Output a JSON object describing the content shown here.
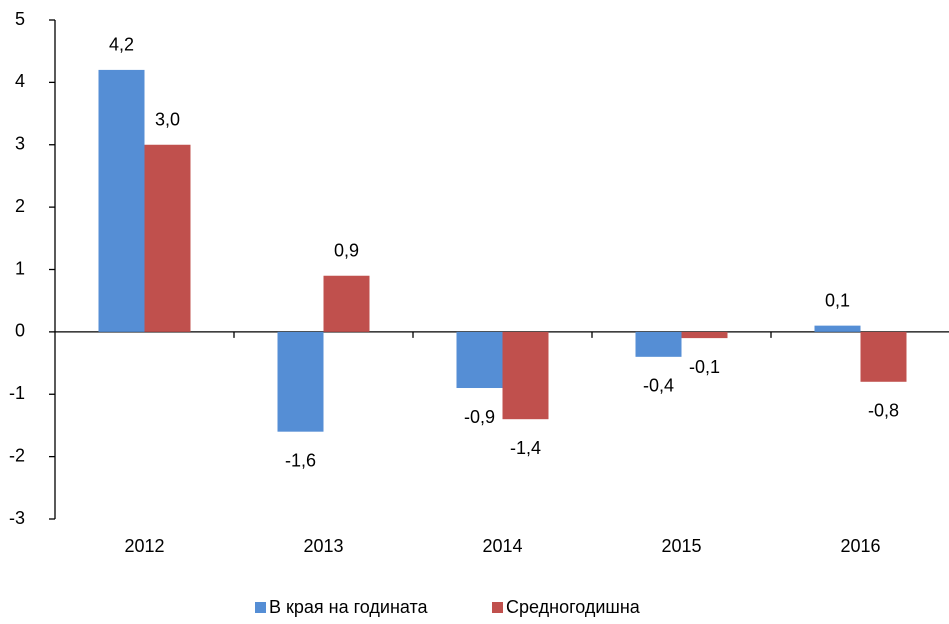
{
  "chart_data": {
    "type": "bar",
    "categories": [
      "2012",
      "2013",
      "2014",
      "2015",
      "2016"
    ],
    "series": [
      {
        "name": "В края на годината",
        "color": "#558ed5",
        "values": [
          4.2,
          -1.6,
          -0.9,
          -0.4,
          0.1
        ],
        "value_labels": [
          "4,2",
          "-1,6",
          "-0,9",
          "-0,4",
          "0,1"
        ]
      },
      {
        "name": "Средногодишна",
        "color": "#c0504d",
        "values": [
          3.0,
          0.9,
          -1.4,
          -0.1,
          -0.8
        ],
        "value_labels": [
          "3,0",
          "0,9",
          "-1,4",
          "-0,1",
          "-0,8"
        ]
      }
    ],
    "ylim": [
      -3,
      5
    ],
    "yticks": [
      -3,
      -2,
      -1,
      0,
      1,
      2,
      3,
      4,
      5
    ],
    "legend": "bottom"
  }
}
